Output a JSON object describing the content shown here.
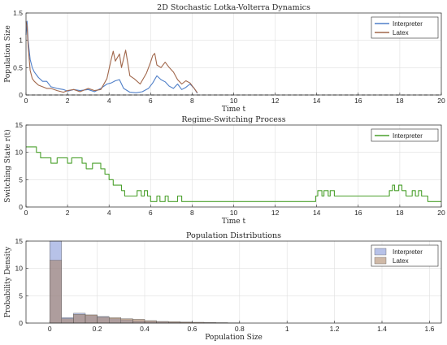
{
  "chart_data": [
    {
      "type": "line",
      "title": "2D Stochastic Lotka-Volterra Dynamics",
      "xlabel": "Time t",
      "ylabel": "Population Size",
      "xlim": [
        0,
        20
      ],
      "ylim": [
        0,
        1.5
      ],
      "xticks": [
        "0",
        "2",
        "4",
        "6",
        "8",
        "10",
        "12",
        "14",
        "16",
        "18",
        "20"
      ],
      "yticks": [
        "0",
        "0.5",
        "1",
        "1.5"
      ],
      "grid": true,
      "legend_position": "top-right",
      "series": [
        {
          "name": "Interpreter",
          "color": "#4f7fc8",
          "x": [
            0,
            0.05,
            0.1,
            0.2,
            0.3,
            0.4,
            0.6,
            0.8,
            1.0,
            1.2,
            1.5,
            1.8,
            2.0,
            2.3,
            2.6,
            3.0,
            3.3,
            3.6,
            3.9,
            4.1,
            4.3,
            4.5,
            4.7,
            5.0,
            5.3,
            5.6,
            5.9,
            6.1,
            6.3,
            6.5,
            6.7,
            6.9,
            7.1,
            7.3,
            7.5,
            7.7,
            7.9,
            8.1,
            8.25
          ],
          "y": [
            1.1,
            1.35,
            1.0,
            0.65,
            0.5,
            0.42,
            0.32,
            0.25,
            0.25,
            0.15,
            0.12,
            0.1,
            0.07,
            0.1,
            0.08,
            0.1,
            0.06,
            0.12,
            0.2,
            0.22,
            0.26,
            0.28,
            0.12,
            0.05,
            0.04,
            0.06,
            0.12,
            0.22,
            0.35,
            0.28,
            0.24,
            0.16,
            0.12,
            0.2,
            0.1,
            0.14,
            0.2,
            0.12,
            0.03
          ]
        },
        {
          "name": "Latex",
          "color": "#a0664a",
          "x": [
            0,
            0.05,
            0.1,
            0.2,
            0.3,
            0.4,
            0.6,
            0.8,
            1.0,
            1.2,
            1.5,
            1.8,
            2.0,
            2.3,
            2.6,
            3.0,
            3.3,
            3.6,
            3.9,
            4.1,
            4.2,
            4.3,
            4.5,
            4.6,
            4.8,
            5.0,
            5.2,
            5.5,
            5.8,
            6.0,
            6.1,
            6.2,
            6.3,
            6.5,
            6.7,
            6.9,
            7.1,
            7.3,
            7.5,
            7.7,
            7.9,
            8.1,
            8.25
          ],
          "y": [
            1.35,
            1.25,
            0.9,
            0.45,
            0.3,
            0.25,
            0.18,
            0.15,
            0.12,
            0.12,
            0.08,
            0.05,
            0.08,
            0.1,
            0.06,
            0.12,
            0.08,
            0.1,
            0.3,
            0.65,
            0.8,
            0.62,
            0.75,
            0.5,
            0.82,
            0.35,
            0.3,
            0.2,
            0.4,
            0.6,
            0.72,
            0.76,
            0.55,
            0.5,
            0.6,
            0.5,
            0.42,
            0.28,
            0.2,
            0.26,
            0.22,
            0.12,
            0.04
          ]
        }
      ]
    },
    {
      "type": "line",
      "title": "Regime-Switching Process",
      "xlabel": "Time t",
      "ylabel": "Switching State r(t)",
      "xlim": [
        0,
        20
      ],
      "ylim": [
        0,
        15
      ],
      "xticks": [
        "0",
        "2",
        "4",
        "6",
        "8",
        "10",
        "12",
        "14",
        "16",
        "18",
        "20"
      ],
      "yticks": [
        "0",
        "5",
        "10",
        "15"
      ],
      "grid": true,
      "legend_position": "top-right",
      "series": [
        {
          "name": "Interpreter",
          "color": "#4aa02c",
          "x": [
            0,
            0.5,
            0.7,
            1.2,
            1.5,
            2.0,
            2.2,
            2.7,
            2.9,
            3.2,
            3.6,
            3.8,
            4.0,
            4.2,
            4.6,
            4.75,
            5.2,
            5.35,
            5.55,
            5.7,
            5.85,
            6.0,
            6.3,
            6.45,
            6.7,
            6.85,
            7.3,
            7.5,
            8.0,
            13.95,
            14.05,
            14.25,
            14.35,
            14.55,
            14.65,
            14.85,
            17.5,
            17.65,
            17.75,
            17.95,
            18.1,
            18.3,
            18.6,
            18.75,
            18.9,
            19.05,
            19.35,
            20
          ],
          "y": [
            11,
            10,
            9,
            8,
            9,
            8,
            9,
            8,
            7,
            8,
            7,
            6,
            5,
            4,
            3,
            2,
            2,
            3,
            2,
            3,
            2,
            1,
            2,
            1,
            2,
            1,
            2,
            1,
            1,
            2,
            3,
            2,
            3,
            2,
            3,
            2,
            3,
            4,
            3,
            4,
            3,
            2,
            3,
            2,
            3,
            2,
            1,
            1
          ]
        }
      ]
    },
    {
      "type": "bar",
      "title": "Population Distributions",
      "xlabel": "Population Size",
      "ylabel": "Probability Density",
      "xlim": [
        -0.1,
        1.65
      ],
      "ylim": [
        0,
        15
      ],
      "xticks": [
        "0",
        "0.2",
        "0.4",
        "0.6",
        "0.8",
        "1",
        "1.2",
        "1.4",
        "1.6"
      ],
      "yticks": [
        "0",
        "5",
        "10",
        "15"
      ],
      "grid": true,
      "legend_position": "top-right",
      "bin_edges": [
        0,
        0.05,
        0.1,
        0.15,
        0.2,
        0.25,
        0.3,
        0.35,
        0.4,
        0.45,
        0.5,
        0.55,
        0.6,
        0.65,
        0.7,
        0.75,
        0.8
      ],
      "series": [
        {
          "name": "Interpreter",
          "color": "#7b8fd6",
          "values": [
            16.2,
            1.0,
            1.8,
            1.4,
            1.2,
            0.8,
            0.6,
            0.4,
            0.3,
            0.25,
            0.15,
            0.12,
            0.08,
            0.05,
            0.03,
            0.02
          ]
        },
        {
          "name": "Latex",
          "color": "#a87f5f",
          "values": [
            11.5,
            0.8,
            1.6,
            1.5,
            1.1,
            1.0,
            0.8,
            0.7,
            0.45,
            0.3,
            0.25,
            0.2,
            0.15,
            0.1,
            0.08,
            0.05
          ]
        }
      ]
    }
  ]
}
